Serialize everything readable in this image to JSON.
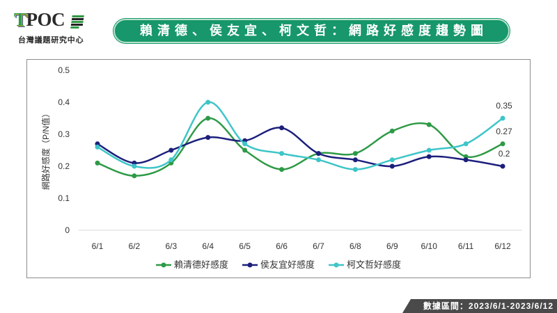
{
  "brand": {
    "name": "TPOC",
    "subtitle": "台灣議題研究中心",
    "mark_icon": "striped-flag"
  },
  "footer": {
    "data_range": "數據區間：2023/6/1-2023/6/12"
  },
  "colors": {
    "banner": "#17976b",
    "banner_border": "#b9e3cc",
    "footer_bg": "#4a4a4a",
    "frame": "#8c8c8c",
    "baseline": "#d9d9d9",
    "axis_text": "#333333",
    "brand_dark": "#2a2a2a",
    "brand_green": "#2f9a44",
    "brand_yellow": "#e2b62c",
    "brand_blue": "#1f4e9a"
  },
  "chart_data": {
    "type": "line",
    "title": "賴清德、侯友宜、柯文哲：網路好感度趨勢圖",
    "xlabel": "",
    "ylabel": "網路好感度（P/N值）",
    "categories": [
      "6/1",
      "6/2",
      "6/3",
      "6/4",
      "6/5",
      "6/6",
      "6/7",
      "6/8",
      "6/9",
      "6/10",
      "6/11",
      "6/12"
    ],
    "ylim": [
      0,
      0.5
    ],
    "yticks": [
      0,
      0.1,
      0.2,
      0.3,
      0.4,
      0.5
    ],
    "grid": false,
    "smooth": true,
    "legend": "bottom",
    "series": [
      {
        "name": "賴清德好感度",
        "color": "#2e9a46",
        "values": [
          0.21,
          0.17,
          0.21,
          0.35,
          0.25,
          0.19,
          0.24,
          0.24,
          0.31,
          0.33,
          0.23,
          0.27
        ],
        "point_labels": [
          {
            "index": 11,
            "text": "0.27"
          }
        ]
      },
      {
        "name": "侯友宜好感度",
        "color": "#1c1f7c",
        "values": [
          0.27,
          0.21,
          0.25,
          0.29,
          0.28,
          0.32,
          0.24,
          0.22,
          0.2,
          0.23,
          0.22,
          0.2
        ],
        "point_labels": [
          {
            "index": 11,
            "text": "0.2"
          }
        ]
      },
      {
        "name": "柯文哲好感度",
        "color": "#3ec5c8",
        "values": [
          0.26,
          0.2,
          0.22,
          0.4,
          0.27,
          0.24,
          0.22,
          0.19,
          0.22,
          0.25,
          0.27,
          0.35
        ],
        "point_labels": [
          {
            "index": 11,
            "text": "0.35"
          }
        ]
      }
    ]
  }
}
